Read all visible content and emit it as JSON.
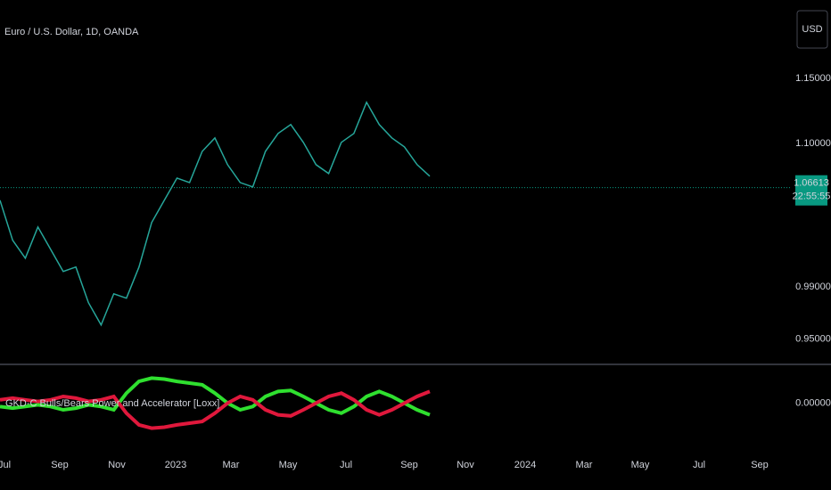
{
  "header": {
    "symbol": "Euro / U.S. Dollar, 1D, OANDA",
    "currency": "USD",
    "countdown": "22:55:55"
  },
  "time_axis": [
    "Jul",
    "Sep",
    "Nov",
    "2023",
    "Mar",
    "May",
    "Jul",
    "Sep",
    "Nov",
    "2024",
    "Mar",
    "May",
    "Jul",
    "Sep"
  ],
  "chart_data": [
    {
      "type": "line",
      "series": [
        {
          "name": "Euro / U.S. Dollar",
          "color": "#26a69a",
          "values": [
            1.0565,
            1.0258,
            1.0121,
            1.036,
            1.0189,
            1.0019,
            1.0053,
            0.978,
            0.9609,
            0.9848,
            0.9814,
            1.0053,
            1.0394,
            1.0565,
            1.0735,
            1.0701,
            1.094,
            1.1043,
            1.0838,
            1.0701,
            1.0667,
            1.094,
            1.1077,
            1.1145,
            1.1009,
            1.0838,
            1.077,
            1.1009,
            1.1077,
            1.1316,
            1.1145,
            1.1043,
            1.0974,
            1.0838,
            1.0749
          ]
        }
      ],
      "last_price": {
        "value": 1.06613,
        "label": "1.06613"
      },
      "ylim": [
        0.93,
        1.21
      ],
      "yticks": [
        {
          "value": 0.95,
          "label": "0.95000"
        },
        {
          "value": 0.99,
          "label": "0.99000"
        },
        {
          "value": 1.1,
          "label": "1.10000"
        },
        {
          "value": 1.15,
          "label": "1.15000"
        }
      ]
    },
    {
      "type": "line",
      "title": "GKD-C Bulls/Bears Power and Accelerator [Loxx]",
      "series": [
        {
          "name": "Bulls",
          "color": "#2fe02f",
          "values": [
            -0.1,
            -0.15,
            -0.1,
            -0.05,
            -0.1,
            -0.2,
            -0.15,
            -0.05,
            -0.1,
            -0.2,
            0.3,
            0.65,
            0.75,
            0.72,
            0.65,
            0.6,
            0.55,
            0.3,
            0.0,
            -0.2,
            -0.1,
            0.2,
            0.35,
            0.38,
            0.2,
            0.0,
            -0.2,
            -0.3,
            -0.1,
            0.2,
            0.35,
            0.2,
            0.0,
            -0.2,
            -0.35
          ]
        },
        {
          "name": "Bears",
          "color": "#e0183c",
          "values": [
            0.1,
            0.15,
            0.1,
            0.05,
            0.1,
            0.2,
            0.15,
            0.05,
            0.1,
            0.2,
            -0.3,
            -0.65,
            -0.75,
            -0.72,
            -0.65,
            -0.6,
            -0.55,
            -0.3,
            0.0,
            0.2,
            0.1,
            -0.2,
            -0.35,
            -0.38,
            -0.2,
            0.0,
            0.2,
            0.3,
            0.1,
            -0.2,
            -0.35,
            -0.2,
            0.0,
            0.2,
            0.35
          ]
        }
      ],
      "ylim": [
        -1,
        1
      ],
      "yticks": [
        {
          "value": 0,
          "label": "0.00000"
        }
      ]
    }
  ]
}
